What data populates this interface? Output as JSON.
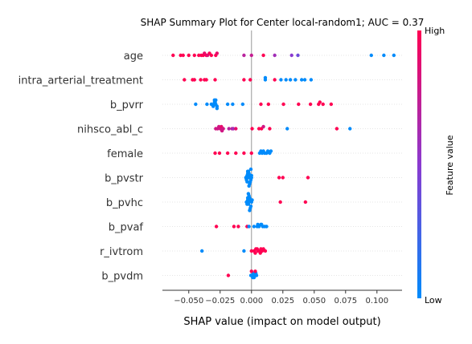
{
  "chart_data": {
    "type": "scatter",
    "title": "SHAP Summary Plot for Center local-random1; AUC = 0.37",
    "xlabel": "SHAP value (impact on model output)",
    "xlim": [
      -0.071,
      0.12
    ],
    "xticks": [
      "−0.050",
      "−0.025",
      "0.000",
      "0.025",
      "0.050",
      "0.075",
      "0.100"
    ],
    "xtick_values": [
      -0.05,
      -0.025,
      0.0,
      0.025,
      0.05,
      0.075,
      0.1
    ],
    "colorbar": {
      "label": "Feature value",
      "high": "High",
      "low": "Low",
      "high_color": "#ff0052",
      "low_color": "#008bfb"
    },
    "features": [
      {
        "name": "age",
        "points": [
          {
            "x": -0.0625,
            "c": 1.0
          },
          {
            "x": -0.0565,
            "c": 1.0
          },
          {
            "x": -0.0545,
            "c": 1.0
          },
          {
            "x": -0.05,
            "c": 1.0
          },
          {
            "x": -0.0455,
            "c": 1.0
          },
          {
            "x": -0.042,
            "c": 1.0
          },
          {
            "x": -0.04,
            "c": 1.0
          },
          {
            "x": -0.0385,
            "c": 1.0
          },
          {
            "x": -0.0375,
            "c": 0.9
          },
          {
            "x": -0.036,
            "c": 1.0
          },
          {
            "x": -0.035,
            "c": 0.85
          },
          {
            "x": -0.0335,
            "c": 1.0
          },
          {
            "x": -0.032,
            "c": 1.0
          },
          {
            "x": -0.0285,
            "c": 1.0
          },
          {
            "x": -0.0275,
            "c": 0.9
          },
          {
            "x": -0.006,
            "c": 0.7
          },
          {
            "x": 0.0,
            "c": 0.75
          },
          {
            "x": 0.0095,
            "c": 1.0
          },
          {
            "x": 0.0185,
            "c": 0.6
          },
          {
            "x": 0.032,
            "c": 0.5
          },
          {
            "x": 0.037,
            "c": 0.4
          },
          {
            "x": 0.0955,
            "c": 0.0
          },
          {
            "x": 0.1055,
            "c": 0.0
          },
          {
            "x": 0.1135,
            "c": 0.0
          }
        ]
      },
      {
        "name": "intra_arterial_treatment",
        "points": [
          {
            "x": -0.0535,
            "c": 1.0
          },
          {
            "x": -0.047,
            "c": 1.0
          },
          {
            "x": -0.0455,
            "c": 1.0
          },
          {
            "x": -0.0405,
            "c": 1.0
          },
          {
            "x": -0.0375,
            "c": 1.0
          },
          {
            "x": -0.036,
            "c": 1.0
          },
          {
            "x": -0.029,
            "c": 1.0
          },
          {
            "x": -0.006,
            "c": 1.0
          },
          {
            "x": -0.001,
            "c": 1.0
          },
          {
            "x": 0.011,
            "c": 0.0
          },
          {
            "x": 0.011,
            "c": 0.0
          },
          {
            "x": 0.0185,
            "c": 1.0
          },
          {
            "x": 0.0235,
            "c": 0.0
          },
          {
            "x": 0.0275,
            "c": 0.0
          },
          {
            "x": 0.031,
            "c": 0.0
          },
          {
            "x": 0.035,
            "c": 0.0
          },
          {
            "x": 0.04,
            "c": 0.0
          },
          {
            "x": 0.0425,
            "c": 0.0
          },
          {
            "x": 0.0475,
            "c": 0.0
          }
        ]
      },
      {
        "name": "b_pvrr",
        "points": [
          {
            "x": -0.0445,
            "c": 0.0
          },
          {
            "x": -0.0355,
            "c": 0.0
          },
          {
            "x": -0.032,
            "c": 0.0
          },
          {
            "x": -0.03,
            "c": 0.0
          },
          {
            "x": -0.0285,
            "c": 0.0
          },
          {
            "x": -0.0295,
            "c": 0.0
          },
          {
            "x": -0.0305,
            "c": 0.0
          },
          {
            "x": -0.029,
            "c": 0.0
          },
          {
            "x": -0.0275,
            "c": 0.0
          },
          {
            "x": -0.0285,
            "c": 0.0
          },
          {
            "x": -0.0275,
            "c": 0.0
          },
          {
            "x": -0.0295,
            "c": 0.0
          },
          {
            "x": -0.019,
            "c": 0.0
          },
          {
            "x": -0.015,
            "c": 0.0
          },
          {
            "x": -0.007,
            "c": 0.0
          },
          {
            "x": 0.0075,
            "c": 1.0
          },
          {
            "x": 0.0135,
            "c": 1.0
          },
          {
            "x": 0.0255,
            "c": 1.0
          },
          {
            "x": 0.0375,
            "c": 1.0
          },
          {
            "x": 0.047,
            "c": 1.0
          },
          {
            "x": 0.0535,
            "c": 1.0
          },
          {
            "x": 0.0545,
            "c": 1.0
          },
          {
            "x": 0.057,
            "c": 1.0
          },
          {
            "x": 0.0635,
            "c": 1.0
          }
        ]
      },
      {
        "name": "nihsco_abl_c",
        "points": [
          {
            "x": -0.0285,
            "c": 0.8
          },
          {
            "x": -0.027,
            "c": 0.8
          },
          {
            "x": -0.026,
            "c": 0.8
          },
          {
            "x": -0.025,
            "c": 0.8
          },
          {
            "x": -0.024,
            "c": 0.9
          },
          {
            "x": -0.0235,
            "c": 0.8
          },
          {
            "x": -0.0225,
            "c": 0.8
          },
          {
            "x": -0.018,
            "c": 0.7
          },
          {
            "x": -0.0155,
            "c": 0.7
          },
          {
            "x": -0.0145,
            "c": 0.6
          },
          {
            "x": -0.0125,
            "c": 0.9
          },
          {
            "x": 0.0005,
            "c": 1.0
          },
          {
            "x": 0.006,
            "c": 1.0
          },
          {
            "x": 0.008,
            "c": 1.0
          },
          {
            "x": 0.0095,
            "c": 0.8
          },
          {
            "x": 0.0145,
            "c": 1.0
          },
          {
            "x": 0.0285,
            "c": 0.0
          },
          {
            "x": 0.068,
            "c": 1.0
          },
          {
            "x": 0.0785,
            "c": 0.0
          }
        ]
      },
      {
        "name": "female",
        "points": [
          {
            "x": -0.029,
            "c": 1.0
          },
          {
            "x": -0.0255,
            "c": 1.0
          },
          {
            "x": -0.019,
            "c": 1.0
          },
          {
            "x": -0.0125,
            "c": 1.0
          },
          {
            "x": -0.006,
            "c": 1.0
          },
          {
            "x": 0.0,
            "c": 1.0
          },
          {
            "x": 0.0065,
            "c": 0.0
          },
          {
            "x": 0.0075,
            "c": 0.0
          },
          {
            "x": 0.0085,
            "c": 0.0
          },
          {
            "x": 0.0095,
            "c": 0.0
          },
          {
            "x": 0.0105,
            "c": 0.0
          },
          {
            "x": 0.012,
            "c": 0.0
          },
          {
            "x": 0.013,
            "c": 0.0
          },
          {
            "x": 0.0145,
            "c": 0.0
          },
          {
            "x": 0.0155,
            "c": 0.0
          }
        ]
      },
      {
        "name": "b_pvstr",
        "points": [
          {
            "x": -0.0045,
            "c": 0.0
          },
          {
            "x": -0.0035,
            "c": 0.0
          },
          {
            "x": -0.0025,
            "c": 0.0
          },
          {
            "x": -0.0015,
            "c": 0.0
          },
          {
            "x": -0.0005,
            "c": 0.0
          },
          {
            "x": -0.004,
            "c": 0.0
          },
          {
            "x": -0.003,
            "c": 0.0
          },
          {
            "x": -0.002,
            "c": 0.0
          },
          {
            "x": -0.001,
            "c": 0.0
          },
          {
            "x": 0.0,
            "c": 0.0
          },
          {
            "x": -0.0035,
            "c": 0.0
          },
          {
            "x": -0.0025,
            "c": 0.0
          },
          {
            "x": -0.0015,
            "c": 0.0
          },
          {
            "x": -0.0005,
            "c": 0.0
          },
          {
            "x": -0.003,
            "c": 0.0
          },
          {
            "x": -0.002,
            "c": 0.0
          },
          {
            "x": 0.0,
            "c": 0.0
          },
          {
            "x": 0.022,
            "c": 1.0
          },
          {
            "x": 0.025,
            "c": 1.0
          },
          {
            "x": 0.045,
            "c": 1.0
          }
        ]
      },
      {
        "name": "b_pvhc",
        "points": [
          {
            "x": -0.004,
            "c": 0.0
          },
          {
            "x": -0.003,
            "c": 0.0
          },
          {
            "x": -0.002,
            "c": 0.0
          },
          {
            "x": -0.001,
            "c": 0.0
          },
          {
            "x": 0.0,
            "c": 0.0
          },
          {
            "x": -0.0035,
            "c": 0.0
          },
          {
            "x": -0.0025,
            "c": 0.0
          },
          {
            "x": -0.0015,
            "c": 0.0
          },
          {
            "x": -0.0005,
            "c": 0.0
          },
          {
            "x": -0.003,
            "c": 0.0
          },
          {
            "x": -0.002,
            "c": 0.0
          },
          {
            "x": -0.001,
            "c": 0.0
          },
          {
            "x": 0.0005,
            "c": 0.0
          },
          {
            "x": -0.0025,
            "c": 0.0
          },
          {
            "x": -0.0015,
            "c": 0.0
          },
          {
            "x": 0.023,
            "c": 1.0
          },
          {
            "x": 0.043,
            "c": 1.0
          }
        ]
      },
      {
        "name": "b_pvaf",
        "points": [
          {
            "x": -0.028,
            "c": 1.0
          },
          {
            "x": -0.014,
            "c": 1.0
          },
          {
            "x": -0.0105,
            "c": 1.0
          },
          {
            "x": -0.0035,
            "c": 1.0
          },
          {
            "x": -0.002,
            "c": 0.0
          },
          {
            "x": 0.002,
            "c": 0.0
          },
          {
            "x": 0.0045,
            "c": 0.0
          },
          {
            "x": 0.006,
            "c": 0.0
          },
          {
            "x": 0.0075,
            "c": 0.0
          },
          {
            "x": 0.009,
            "c": 0.0
          },
          {
            "x": 0.0105,
            "c": 0.0
          },
          {
            "x": 0.012,
            "c": 0.0
          },
          {
            "x": 0.005,
            "c": 0.0
          },
          {
            "x": 0.008,
            "c": 0.0
          }
        ]
      },
      {
        "name": "r_ivtrom",
        "points": [
          {
            "x": -0.0395,
            "c": 0.0
          },
          {
            "x": -0.006,
            "c": 0.0
          },
          {
            "x": 0.0,
            "c": 1.0
          },
          {
            "x": 0.002,
            "c": 1.0
          },
          {
            "x": 0.0035,
            "c": 1.0
          },
          {
            "x": 0.005,
            "c": 1.0
          },
          {
            "x": 0.0065,
            "c": 1.0
          },
          {
            "x": 0.0075,
            "c": 1.0
          },
          {
            "x": 0.0085,
            "c": 1.0
          },
          {
            "x": 0.0095,
            "c": 1.0
          },
          {
            "x": 0.011,
            "c": 1.0
          },
          {
            "x": 0.0045,
            "c": 1.0
          },
          {
            "x": 0.007,
            "c": 1.0
          },
          {
            "x": 0.003,
            "c": 1.0
          }
        ]
      },
      {
        "name": "b_pvdm",
        "points": [
          {
            "x": -0.0185,
            "c": 1.0
          },
          {
            "x": -0.0005,
            "c": 0.0
          },
          {
            "x": 0.0005,
            "c": 0.0
          },
          {
            "x": 0.0015,
            "c": 0.0
          },
          {
            "x": 0.0025,
            "c": 0.0
          },
          {
            "x": 0.0035,
            "c": 0.0
          },
          {
            "x": 0.001,
            "c": 0.0
          },
          {
            "x": 0.002,
            "c": 0.0
          },
          {
            "x": 0.003,
            "c": 1.0
          },
          {
            "x": 0.004,
            "c": 0.0
          },
          {
            "x": 0.0,
            "c": 1.0
          }
        ]
      }
    ]
  }
}
